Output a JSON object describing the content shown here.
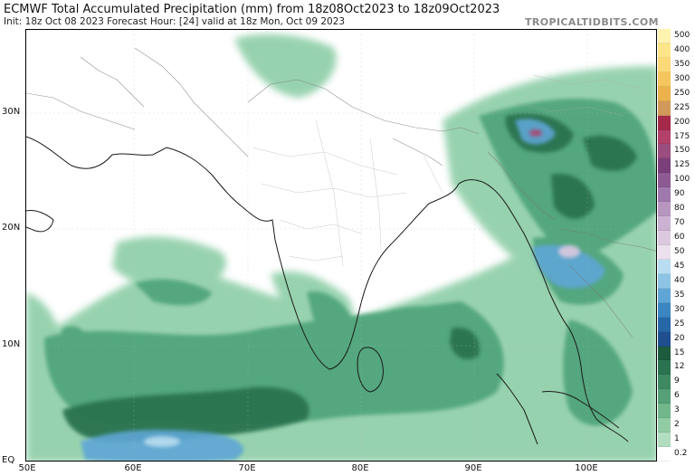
{
  "header": {
    "title": "ECMWF Total Accumulated Precipitation (mm) from 18z08Oct2023 to 18z09Oct2023",
    "subtitle": "Init: 18z Oct 08 2023   Forecast Hour: [24]   valid at 18z Mon, Oct 09 2023",
    "brand": "TROPICALTIDBITS.COM"
  },
  "axes": {
    "lat_labels": [
      "30N",
      "20N",
      "10N",
      "EQ"
    ],
    "lon_labels": [
      "50E",
      "60E",
      "70E",
      "80E",
      "90E",
      "100E"
    ]
  },
  "colorbar": {
    "levels": [
      "500",
      "400",
      "350",
      "300",
      "250",
      "225",
      "200",
      "175",
      "150",
      "125",
      "100",
      "90",
      "80",
      "70",
      "60",
      "50",
      "45",
      "40",
      "35",
      "30",
      "25",
      "20",
      "15",
      "12",
      "9",
      "6",
      "3",
      "2",
      "1",
      "0.2"
    ],
    "colors": [
      "#fff3b0",
      "#fde68a",
      "#fcd977",
      "#f5c65e",
      "#ebb24e",
      "#d19a5a",
      "#a52a4a",
      "#b3416a",
      "#9c4d7f",
      "#7b3f7a",
      "#8d5a94",
      "#a07aac",
      "#b797c0",
      "#cbb2d2",
      "#dcc9df",
      "#ece0ee",
      "#b9ddf0",
      "#8dc4e6",
      "#5fa6d6",
      "#3b86c1",
      "#2667a8",
      "#1f4f8f",
      "#1c5b3e",
      "#2a7350",
      "#3d8a62",
      "#55a076",
      "#72b78c",
      "#91cba4",
      "#b3ddc0",
      "#ffffff"
    ]
  }
}
